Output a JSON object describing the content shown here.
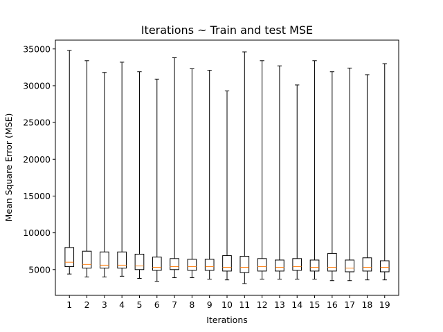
{
  "chart_data": {
    "type": "boxplot",
    "title": "Iterations ~ Train and test MSE",
    "xlabel": "Iterations",
    "ylabel": "Mean Square Error (MSE)",
    "ylim": [
      1500,
      36200
    ],
    "yticks": [
      5000,
      10000,
      15000,
      20000,
      25000,
      30000,
      35000
    ],
    "ytick_labels": [
      "5000",
      "10000",
      "15000",
      "20000",
      "25000",
      "30000",
      "35000"
    ],
    "grid": false,
    "legend": "none",
    "colors": {
      "box": "#000000",
      "median": "#ff7f0e",
      "background": "#ffffff"
    },
    "categories": [
      "1",
      "2",
      "3",
      "4",
      "5",
      "6",
      "7",
      "8",
      "9",
      "10",
      "11",
      "12",
      "13",
      "14",
      "15",
      "16",
      "17",
      "18",
      "19"
    ],
    "boxes": [
      {
        "whisker_low": 4400,
        "q1": 5400,
        "median": 6000,
        "q3": 8000,
        "whisker_high": 34800
      },
      {
        "whisker_low": 4000,
        "q1": 5200,
        "median": 5700,
        "q3": 7500,
        "whisker_high": 33400
      },
      {
        "whisker_low": 4000,
        "q1": 5200,
        "median": 5600,
        "q3": 7400,
        "whisker_high": 31800
      },
      {
        "whisker_low": 4100,
        "q1": 5200,
        "median": 5600,
        "q3": 7400,
        "whisker_high": 33200
      },
      {
        "whisker_low": 3800,
        "q1": 5000,
        "median": 5500,
        "q3": 7100,
        "whisker_high": 31900
      },
      {
        "whisker_low": 3400,
        "q1": 4900,
        "median": 5300,
        "q3": 6700,
        "whisker_high": 30900
      },
      {
        "whisker_low": 3900,
        "q1": 5000,
        "median": 5400,
        "q3": 6500,
        "whisker_high": 33800
      },
      {
        "whisker_low": 3900,
        "q1": 4900,
        "median": 5400,
        "q3": 6400,
        "whisker_high": 32300
      },
      {
        "whisker_low": 3700,
        "q1": 4900,
        "median": 5400,
        "q3": 6400,
        "whisker_high": 32100
      },
      {
        "whisker_low": 3600,
        "q1": 4800,
        "median": 5300,
        "q3": 6900,
        "whisker_high": 29300
      },
      {
        "whisker_low": 3100,
        "q1": 4600,
        "median": 5300,
        "q3": 6800,
        "whisker_high": 34600
      },
      {
        "whisker_low": 3700,
        "q1": 4800,
        "median": 5400,
        "q3": 6500,
        "whisker_high": 33400
      },
      {
        "whisker_low": 3700,
        "q1": 4800,
        "median": 5300,
        "q3": 6300,
        "whisker_high": 32700
      },
      {
        "whisker_low": 3700,
        "q1": 4900,
        "median": 5400,
        "q3": 6500,
        "whisker_high": 30100
      },
      {
        "whisker_low": 3700,
        "q1": 4800,
        "median": 5300,
        "q3": 6300,
        "whisker_high": 33400
      },
      {
        "whisker_low": 3500,
        "q1": 4800,
        "median": 5300,
        "q3": 7200,
        "whisker_high": 31900
      },
      {
        "whisker_low": 3500,
        "q1": 4700,
        "median": 5200,
        "q3": 6300,
        "whisker_high": 32400
      },
      {
        "whisker_low": 3600,
        "q1": 4800,
        "median": 5300,
        "q3": 6600,
        "whisker_high": 31500
      },
      {
        "whisker_low": 3600,
        "q1": 4700,
        "median": 5300,
        "q3": 6200,
        "whisker_high": 33000
      }
    ]
  }
}
